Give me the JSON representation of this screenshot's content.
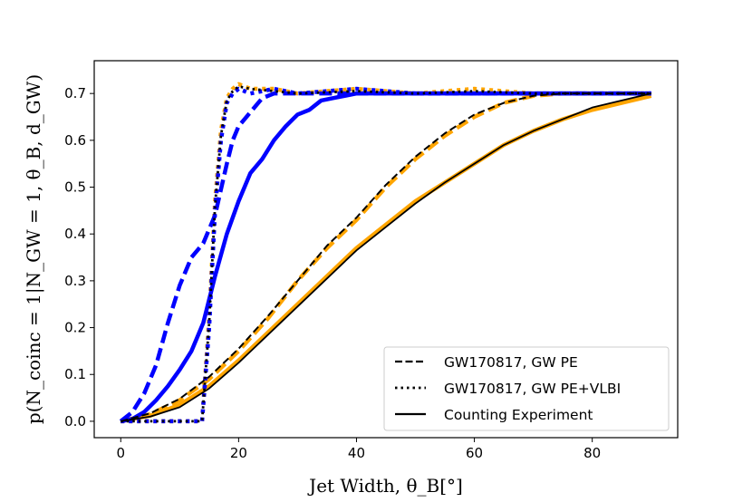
{
  "chart_data": {
    "type": "line",
    "title": "",
    "xlabel": "Jet Width, θ_B[°]",
    "ylabel": "p(N_coinc = 1|N_GW = 1, θ_B, d_GW)",
    "xlim": [
      -4.5,
      94.5
    ],
    "ylim": [
      -0.035,
      0.77
    ],
    "xticks": [
      0,
      20,
      40,
      60,
      80
    ],
    "yticks": [
      0.0,
      0.1,
      0.2,
      0.3,
      0.4,
      0.5,
      0.6,
      0.7
    ],
    "ytick_labels": [
      "0.0",
      "0.1",
      "0.2",
      "0.3",
      "0.4",
      "0.5",
      "0.6",
      "0.7"
    ],
    "grid": false,
    "legend_position": "lower-right",
    "legend": [
      {
        "label": "GW170817, GW PE",
        "style": "dashed",
        "color": "#000000"
      },
      {
        "label": "GW170817, GW PE+VLBI",
        "style": "dotted",
        "color": "#000000"
      },
      {
        "label": "Counting Experiment",
        "style": "solid",
        "color": "#000000"
      }
    ],
    "series": [
      {
        "name": "blue-solid",
        "color": "#0000ff",
        "style": "solid",
        "x": [
          0,
          2,
          4,
          6,
          8,
          10,
          12,
          14,
          16,
          18,
          20,
          22,
          24,
          26,
          28,
          30,
          32,
          34,
          36,
          38,
          40,
          45,
          50,
          55,
          60,
          65,
          70,
          75,
          80,
          85,
          90
        ],
        "y": [
          0.0,
          0.005,
          0.02,
          0.045,
          0.075,
          0.11,
          0.15,
          0.21,
          0.31,
          0.4,
          0.47,
          0.53,
          0.56,
          0.6,
          0.63,
          0.655,
          0.665,
          0.685,
          0.69,
          0.695,
          0.7,
          0.7,
          0.7,
          0.7,
          0.7,
          0.7,
          0.7,
          0.7,
          0.7,
          0.7,
          0.7
        ]
      },
      {
        "name": "blue-dashed",
        "color": "#0000ff",
        "style": "dashed",
        "x": [
          0,
          2,
          4,
          6,
          8,
          10,
          12,
          14,
          16,
          18,
          19,
          20,
          22,
          24,
          26,
          30,
          35,
          40,
          50,
          60,
          70,
          80,
          90
        ],
        "y": [
          0.0,
          0.02,
          0.06,
          0.12,
          0.21,
          0.29,
          0.35,
          0.38,
          0.44,
          0.55,
          0.6,
          0.63,
          0.66,
          0.69,
          0.7,
          0.7,
          0.7,
          0.7,
          0.7,
          0.7,
          0.7,
          0.7,
          0.7
        ]
      },
      {
        "name": "blue-dotted",
        "color": "#0000ff",
        "style": "dotted",
        "x": [
          0,
          5,
          10,
          13,
          13.8,
          15,
          16,
          17,
          18,
          19,
          20,
          22,
          26,
          30,
          40,
          50,
          60,
          70,
          80,
          90
        ],
        "y": [
          0.0,
          0.0,
          0.0,
          0.0,
          0.0,
          0.2,
          0.45,
          0.6,
          0.68,
          0.7,
          0.71,
          0.7,
          0.71,
          0.7,
          0.71,
          0.7,
          0.7,
          0.7,
          0.7,
          0.7
        ]
      },
      {
        "name": "orange-solid",
        "color": "#ffa500",
        "style": "solid",
        "x": [
          0,
          5,
          10,
          15,
          20,
          25,
          30,
          35,
          40,
          45,
          50,
          55,
          60,
          65,
          70,
          75,
          80,
          85,
          90
        ],
        "y": [
          0.0,
          0.012,
          0.035,
          0.075,
          0.13,
          0.19,
          0.25,
          0.31,
          0.37,
          0.42,
          0.47,
          0.51,
          0.55,
          0.59,
          0.62,
          0.645,
          0.665,
          0.68,
          0.695
        ]
      },
      {
        "name": "orange-dashed",
        "color": "#ffa500",
        "style": "dashed",
        "x": [
          0,
          5,
          10,
          15,
          20,
          25,
          30,
          35,
          40,
          45,
          50,
          55,
          60,
          65,
          70,
          75,
          80,
          85,
          90
        ],
        "y": [
          0.0,
          0.015,
          0.045,
          0.09,
          0.15,
          0.22,
          0.3,
          0.37,
          0.43,
          0.5,
          0.56,
          0.61,
          0.65,
          0.68,
          0.695,
          0.7,
          0.7,
          0.7,
          0.7
        ]
      },
      {
        "name": "orange-dotted",
        "color": "#ffa500",
        "style": "dotted",
        "x": [
          0,
          5,
          10,
          13,
          13.8,
          15,
          16,
          17,
          18,
          19,
          20,
          22,
          26,
          30,
          40,
          50,
          60,
          70,
          80,
          90
        ],
        "y": [
          0.0,
          0.0,
          0.0,
          0.0,
          0.0,
          0.22,
          0.47,
          0.62,
          0.69,
          0.71,
          0.72,
          0.71,
          0.71,
          0.7,
          0.71,
          0.7,
          0.71,
          0.7,
          0.7,
          0.7
        ]
      },
      {
        "name": "black-solid",
        "color": "#000000",
        "style": "solid",
        "x": [
          0,
          5,
          10,
          15,
          20,
          25,
          30,
          35,
          40,
          45,
          50,
          55,
          60,
          65,
          70,
          75,
          80,
          85,
          90
        ],
        "y": [
          0.0,
          0.01,
          0.03,
          0.07,
          0.125,
          0.185,
          0.245,
          0.305,
          0.365,
          0.415,
          0.465,
          0.51,
          0.55,
          0.59,
          0.62,
          0.645,
          0.67,
          0.685,
          0.7
        ]
      },
      {
        "name": "black-dashed",
        "color": "#000000",
        "style": "dashed",
        "x": [
          0,
          5,
          10,
          15,
          20,
          25,
          30,
          35,
          40,
          45,
          50,
          55,
          60,
          65,
          70,
          75,
          80,
          85,
          90
        ],
        "y": [
          0.0,
          0.017,
          0.048,
          0.095,
          0.155,
          0.225,
          0.3,
          0.375,
          0.435,
          0.505,
          0.565,
          0.615,
          0.655,
          0.68,
          0.695,
          0.7,
          0.7,
          0.7,
          0.7
        ]
      },
      {
        "name": "black-dotted",
        "color": "#000000",
        "style": "dotted",
        "x": [
          0,
          5,
          10,
          13,
          13.8,
          15,
          16,
          17,
          18,
          19,
          20,
          22,
          26,
          30,
          40,
          50,
          60,
          70,
          80,
          90
        ],
        "y": [
          0.0,
          0.0,
          0.0,
          0.0,
          0.0,
          0.21,
          0.46,
          0.61,
          0.685,
          0.705,
          0.715,
          0.71,
          0.705,
          0.7,
          0.705,
          0.7,
          0.705,
          0.7,
          0.7,
          0.7
        ]
      }
    ]
  }
}
